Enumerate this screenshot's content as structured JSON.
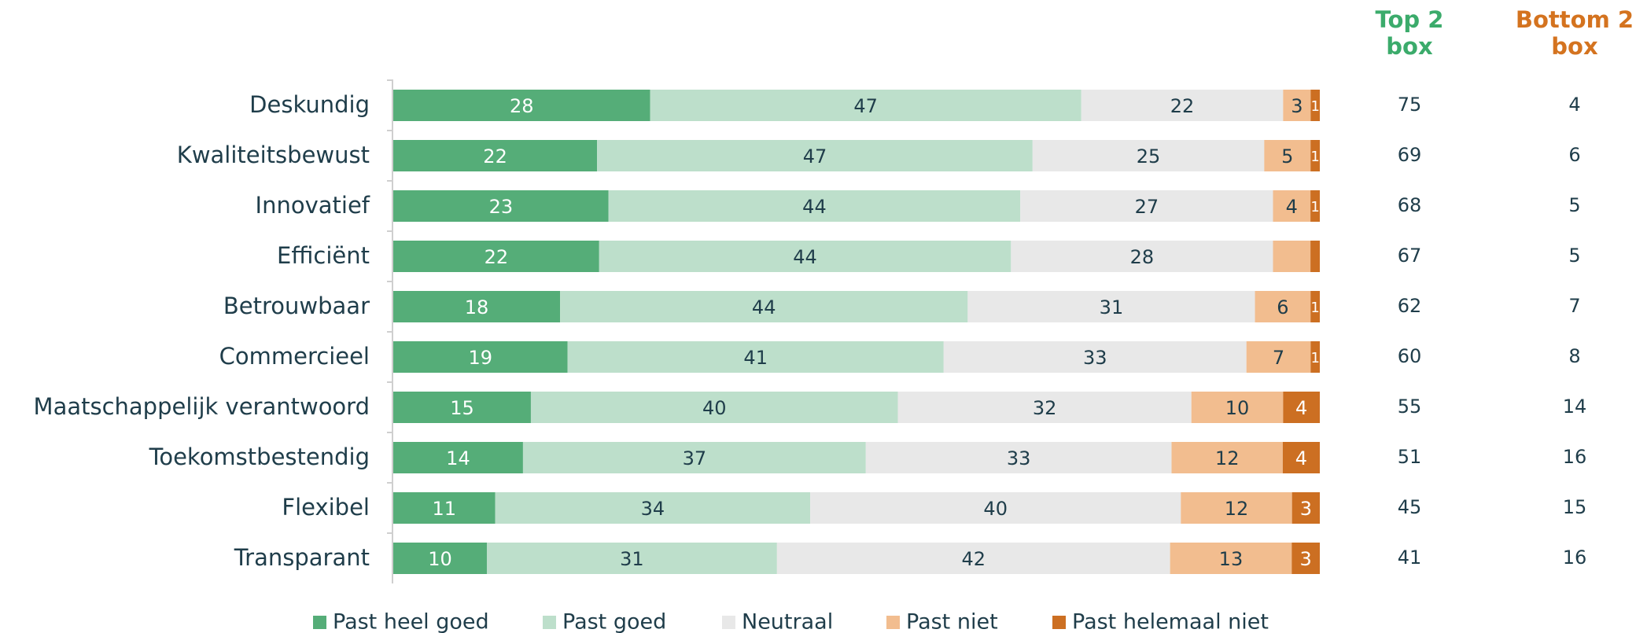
{
  "chart_data": {
    "type": "bar",
    "orientation": "horizontal",
    "stacked": true,
    "categories": [
      "Deskundig",
      "Kwaliteitsbewust",
      "Innovatief",
      "Efficiënt",
      "Betrouwbaar",
      "Commercieel",
      "Maatschappelijk verantwoord",
      "Toekomstbestendig",
      "Flexibel",
      "Transparant"
    ],
    "series": [
      {
        "name": "Past heel goed",
        "color": "#55ad78",
        "values": [
          28,
          22,
          23,
          22,
          18,
          19,
          15,
          14,
          11,
          10
        ]
      },
      {
        "name": "Past goed",
        "color": "#bddfcb",
        "values": [
          47,
          47,
          44,
          44,
          44,
          41,
          40,
          37,
          34,
          31
        ]
      },
      {
        "name": "Neutraal",
        "color": "#e8e8e8",
        "values": [
          22,
          25,
          27,
          28,
          31,
          33,
          32,
          33,
          40,
          42
        ]
      },
      {
        "name": "Past niet",
        "color": "#f2bd8f",
        "values": [
          3,
          5,
          4,
          4,
          6,
          7,
          10,
          12,
          12,
          13
        ]
      },
      {
        "name": "Past helemaal niet",
        "color": "#cc6f22",
        "values": [
          1,
          1,
          1,
          1,
          1,
          1,
          4,
          4,
          3,
          3
        ]
      }
    ],
    "data_labels": [
      [
        "28",
        "47",
        "22",
        "3",
        "1"
      ],
      [
        "22",
        "47",
        "25",
        "5",
        "1"
      ],
      [
        "23",
        "44",
        "27",
        "4",
        "1"
      ],
      [
        "22",
        "44",
        "28",
        "",
        ""
      ],
      [
        "18",
        "44",
        "31",
        "6",
        "1"
      ],
      [
        "19",
        "41",
        "33",
        "7",
        "1"
      ],
      [
        "15",
        "40",
        "32",
        "10",
        "4"
      ],
      [
        "14",
        "37",
        "33",
        "12",
        "4"
      ],
      [
        "11",
        "34",
        "40",
        "12",
        "3"
      ],
      [
        "10",
        "31",
        "42",
        "13",
        "3"
      ]
    ],
    "top2_header": [
      "Top 2",
      "box"
    ],
    "bottom2_header": [
      "Bottom 2",
      "box"
    ],
    "top2_values": [
      "75",
      "69",
      "68",
      "67",
      "62",
      "60",
      "55",
      "51",
      "45",
      "41"
    ],
    "bottom2_values": [
      "4",
      "6",
      "5",
      "5",
      "7",
      "8",
      "14",
      "16",
      "15",
      "16"
    ],
    "top2_color": "#3bab6b",
    "bottom2_color": "#d4731f",
    "legend_position": "bottom"
  }
}
